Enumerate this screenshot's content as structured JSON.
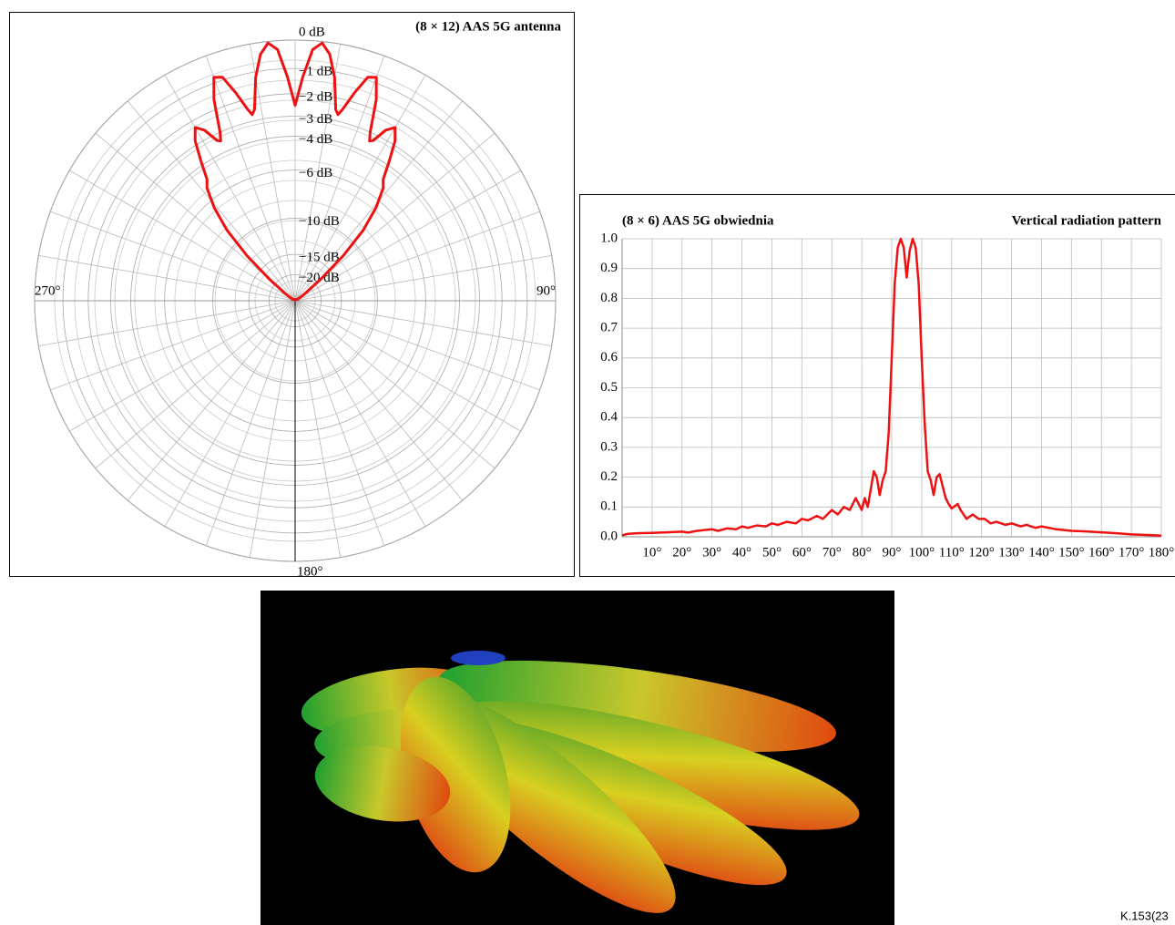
{
  "chart_data": [
    {
      "type": "polar",
      "title": "(8 × 12) AAS 5G antenna",
      "theta": [
        -60,
        -55,
        -50,
        -47,
        -44,
        -41,
        -38,
        -36,
        -34,
        -32,
        -30,
        -28,
        -26,
        -25,
        -24,
        -22,
        -20,
        -18,
        -16,
        -14,
        -13,
        -12,
        -10,
        -8,
        -6,
        -4,
        -2,
        0,
        2,
        4,
        6,
        8,
        10,
        12,
        13,
        14,
        16,
        18,
        20,
        22,
        24,
        25,
        26,
        28,
        30,
        32,
        34,
        36,
        38,
        41,
        44,
        47,
        50,
        55,
        60
      ],
      "series": [
        {
          "color": "#ee1111",
          "values": [
            -40,
            -28,
            -18,
            -12,
            -8.5,
            -6.5,
            -5.2,
            -4.8,
            -3.8,
            -2.8,
            -2.3,
            -2.6,
            -3.3,
            -3.4,
            -3.0,
            -1.6,
            -0.8,
            -0.9,
            -1.6,
            -2.4,
            -2.7,
            -2.5,
            -1.2,
            -0.4,
            -0.05,
            -0.3,
            -1.3,
            -2.5,
            -1.3,
            -0.3,
            -0.05,
            -0.4,
            -1.2,
            -2.5,
            -2.7,
            -2.4,
            -1.6,
            -0.9,
            -0.8,
            -1.6,
            -3.0,
            -3.4,
            -3.3,
            -2.6,
            -2.3,
            -2.8,
            -3.8,
            -4.8,
            -5.2,
            -6.5,
            -8.5,
            -12,
            -18,
            -28,
            -40
          ]
        }
      ],
      "rscale": "amplitude",
      "rticks": [
        {
          "value": 0,
          "label": "0 dB"
        },
        {
          "value": -1,
          "label": "−1 dB"
        },
        {
          "value": -2,
          "label": "−2 dB"
        },
        {
          "value": -3,
          "label": "−3 dB"
        },
        {
          "value": -4,
          "label": "−4 dB"
        },
        {
          "value": -6,
          "label": "−6 dB"
        },
        {
          "value": -10,
          "label": "−10 dB"
        },
        {
          "value": -15,
          "label": "−15 dB"
        },
        {
          "value": -20,
          "label": "−20 dB"
        }
      ],
      "thetaticks": [
        {
          "value": 90,
          "label": "90°"
        },
        {
          "value": 180,
          "label": "180°"
        },
        {
          "value": 270,
          "label": "270°"
        }
      ]
    },
    {
      "type": "line",
      "title": "(8 × 6) AAS 5G obwiednia",
      "subtitle": "Vertical radiation pattern",
      "x": [
        0,
        2,
        5,
        10,
        15,
        20,
        22,
        25,
        30,
        32,
        35,
        38,
        40,
        42,
        45,
        48,
        50,
        52,
        55,
        58,
        60,
        62,
        65,
        67,
        70,
        72,
        74,
        76,
        78,
        80,
        81,
        82,
        84,
        85,
        86,
        87,
        88,
        89,
        90,
        91,
        92,
        93,
        94,
        95,
        96,
        97,
        98,
        99,
        100,
        101,
        102,
        103,
        104,
        105,
        106,
        107,
        108,
        109,
        110,
        112,
        113,
        115,
        117,
        119,
        121,
        123,
        125,
        128,
        130,
        133,
        135,
        138,
        140,
        145,
        150,
        155,
        160,
        165,
        170,
        175,
        180
      ],
      "series": [
        {
          "color": "#ee1111",
          "values": [
            0.005,
            0.01,
            0.012,
            0.013,
            0.015,
            0.017,
            0.014,
            0.02,
            0.025,
            0.02,
            0.028,
            0.025,
            0.035,
            0.03,
            0.038,
            0.035,
            0.045,
            0.04,
            0.05,
            0.045,
            0.06,
            0.055,
            0.07,
            0.06,
            0.09,
            0.075,
            0.1,
            0.09,
            0.13,
            0.09,
            0.13,
            0.1,
            0.22,
            0.2,
            0.14,
            0.19,
            0.22,
            0.35,
            0.6,
            0.85,
            0.97,
            1.0,
            0.97,
            0.87,
            0.96,
            1.0,
            0.97,
            0.85,
            0.6,
            0.38,
            0.22,
            0.19,
            0.14,
            0.2,
            0.21,
            0.17,
            0.13,
            0.11,
            0.095,
            0.11,
            0.09,
            0.06,
            0.075,
            0.06,
            0.06,
            0.045,
            0.05,
            0.04,
            0.045,
            0.035,
            0.04,
            0.03,
            0.035,
            0.025,
            0.02,
            0.018,
            0.015,
            0.012,
            0.008,
            0.006,
            0.004
          ]
        }
      ],
      "xlim": [
        0,
        180
      ],
      "xticks": [
        {
          "value": 10,
          "label": "10°"
        },
        {
          "value": 20,
          "label": "20°"
        },
        {
          "value": 30,
          "label": "30°"
        },
        {
          "value": 40,
          "label": "40°"
        },
        {
          "value": 50,
          "label": "50°"
        },
        {
          "value": 60,
          "label": "60°"
        },
        {
          "value": 70,
          "label": "70°"
        },
        {
          "value": 80,
          "label": "80°"
        },
        {
          "value": 90,
          "label": "90°"
        },
        {
          "value": 100,
          "label": "100°"
        },
        {
          "value": 110,
          "label": "110°"
        },
        {
          "value": 120,
          "label": "120°"
        },
        {
          "value": 130,
          "label": "130°"
        },
        {
          "value": 140,
          "label": "140°"
        },
        {
          "value": 150,
          "label": "150°"
        },
        {
          "value": 160,
          "label": "160°"
        },
        {
          "value": 170,
          "label": "170°"
        },
        {
          "value": 180,
          "label": "180°"
        }
      ],
      "ylim": [
        0,
        1
      ],
      "yticks": [
        {
          "value": 0,
          "label": "0.0"
        },
        0.1,
        0.2,
        0.3,
        0.4,
        0.5,
        0.6,
        0.7,
        0.8,
        0.9,
        {
          "value": 1,
          "label": "1.0"
        }
      ],
      "grid": true
    }
  ],
  "figure_id": "K.153(23"
}
